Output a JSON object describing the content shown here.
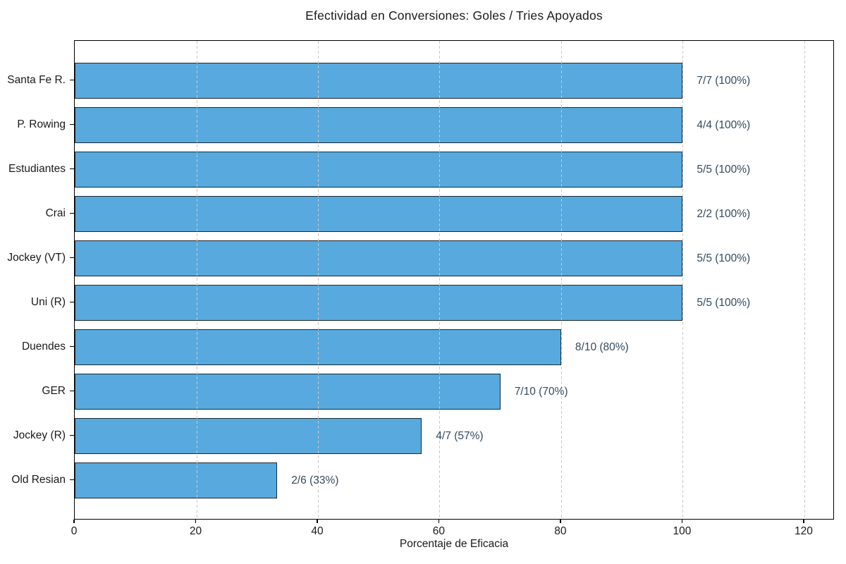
{
  "chart_data": {
    "type": "bar",
    "orientation": "horizontal",
    "title": "Efectividad en Conversiones: Goles / Tries Apoyados",
    "xlabel": "Porcentaje de Eficacia",
    "ylabel": "",
    "categories": [
      "Santa Fe R.",
      "P. Rowing",
      "Estudiantes",
      "Crai",
      "Jockey (VT)",
      "Uni (R)",
      "Duendes",
      "GER",
      "Jockey (R)",
      "Old Resian"
    ],
    "values": [
      100,
      100,
      100,
      100,
      100,
      100,
      80,
      70,
      57.1,
      33.3
    ],
    "bar_labels": [
      "7/7 (100%)",
      "4/4 (100%)",
      "5/5 (100%)",
      "2/2 (100%)",
      "5/5 (100%)",
      "5/5 (100%)",
      "8/10 (80%)",
      "7/10 (70%)",
      "4/7 (57%)",
      "2/6 (33%)"
    ],
    "xticks": [
      0,
      20,
      40,
      60,
      80,
      100,
      120
    ],
    "xlim": [
      0,
      125
    ],
    "grid": "vertical-dashed-above-bars",
    "legend": "none",
    "colors": {
      "bar_fill": "#58A9DD",
      "bar_edge": "#1C2833",
      "grid_line": "#C9C9C9",
      "value_label": "#34495E",
      "axis_text": "#1A1A1A",
      "spine": "#000000",
      "background": "#FFFFFF"
    }
  }
}
